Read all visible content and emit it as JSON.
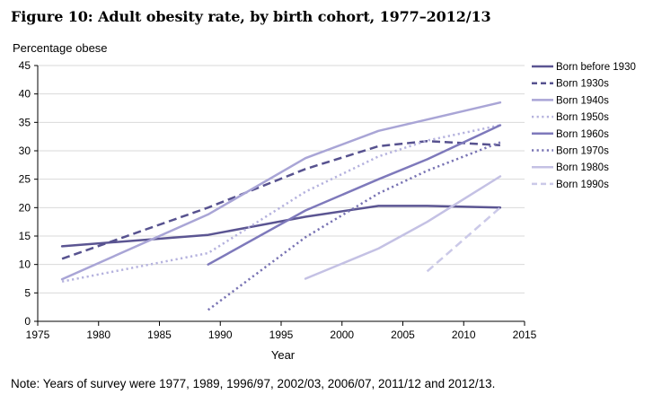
{
  "figure": {
    "title": "Figure 10: Adult obesity rate, by birth cohort, 1977–2012/13",
    "note": "Note: Years of survey were 1977, 1989, 1996/97, 2002/03, 2006/07, 2011/12 and 2012/13."
  },
  "chart_data": {
    "type": "line",
    "title": "Figure 10: Adult obesity rate, by birth cohort, 1977–2012/13",
    "xlabel": "Year",
    "ylabel": "Percentage obese",
    "xlim": [
      1975,
      2015
    ],
    "ylim": [
      0,
      45
    ],
    "xticks": [
      1975,
      1980,
      1985,
      1990,
      1995,
      2000,
      2005,
      2010,
      2015
    ],
    "yticks": [
      0,
      5,
      10,
      15,
      20,
      25,
      30,
      35,
      40,
      45
    ],
    "grid": "horizontal",
    "legend_position": "right",
    "series": [
      {
        "name": "Born before 1930",
        "color": "#5b5592",
        "dash": "solid",
        "x": [
          1977,
          1989,
          1997,
          2003,
          2007,
          2013
        ],
        "y": [
          13.2,
          15.2,
          18.4,
          20.3,
          20.3,
          20.0
        ]
      },
      {
        "name": "Born 1930s",
        "color": "#57528f",
        "dash": "dashed",
        "x": [
          1977,
          1989,
          1997,
          2003,
          2007,
          2013
        ],
        "y": [
          11.0,
          20.0,
          26.8,
          30.8,
          31.7,
          31.0
        ]
      },
      {
        "name": "Born 1940s",
        "color": "#a9a5d6",
        "dash": "solid",
        "x": [
          1977,
          1989,
          1997,
          2003,
          2007,
          2013
        ],
        "y": [
          7.4,
          18.8,
          28.7,
          33.5,
          35.5,
          38.5
        ]
      },
      {
        "name": "Born 1950s",
        "color": "#b5b2de",
        "dash": "dotted",
        "x": [
          1977,
          1989,
          1997,
          2003,
          2007,
          2013
        ],
        "y": [
          7.0,
          12.0,
          22.8,
          29.0,
          31.8,
          34.5
        ]
      },
      {
        "name": "Born 1960s",
        "color": "#7e79bb",
        "dash": "solid",
        "x": [
          1989,
          1997,
          2003,
          2007,
          2013
        ],
        "y": [
          10.0,
          19.5,
          25.0,
          28.5,
          34.5
        ]
      },
      {
        "name": "Born 1970s",
        "color": "#7873b3",
        "dash": "dotted",
        "x": [
          1989,
          1997,
          2003,
          2007,
          2013
        ],
        "y": [
          2.0,
          14.8,
          22.5,
          26.5,
          31.5
        ]
      },
      {
        "name": "Born 1980s",
        "color": "#c4c1e4",
        "dash": "solid",
        "x": [
          1997,
          2003,
          2007,
          2013
        ],
        "y": [
          7.5,
          12.8,
          17.5,
          25.5
        ]
      },
      {
        "name": "Born 1990s",
        "color": "#cbc9e8",
        "dash": "dashed",
        "x": [
          2007,
          2013
        ],
        "y": [
          8.8,
          20.0
        ]
      }
    ]
  }
}
